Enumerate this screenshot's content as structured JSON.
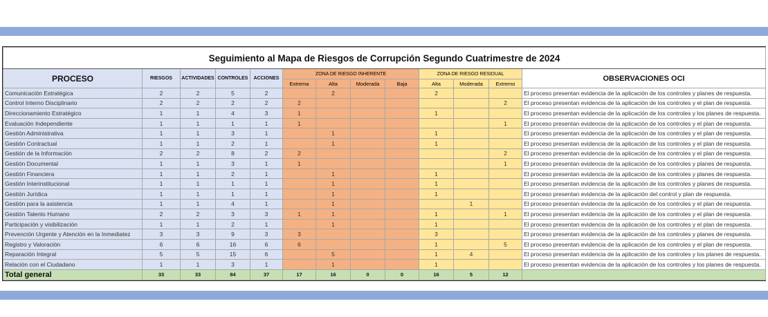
{
  "title": "Seguimiento al Mapa de Riesgos de Corrupción Segundo Cuatrimestre de 2024",
  "headers": {
    "proceso": "PROCESO",
    "riesgos": "RIESGOS",
    "actividades": "ACTIVIDADES",
    "controles": "CONTROLES",
    "acciones": "ACCIONES",
    "zona_inherente": "ZONA DE RIESGO INHERENTE",
    "zona_residual": "ZONA DE RIESGO RESIDUAL",
    "observaciones": "OBSERVACIONES OCI",
    "inh_cols": [
      "Extrema",
      "Alta",
      "Moderada",
      "Baja"
    ],
    "res_cols": [
      "Alta",
      "Moderada",
      "Extremo"
    ]
  },
  "rows": [
    {
      "proceso": "Comunicación Estratégica",
      "riesgos": "2",
      "actividades": "2",
      "controles": "5",
      "acciones": "2",
      "inh": [
        "",
        "2",
        "",
        ""
      ],
      "res": [
        "2",
        "",
        ""
      ],
      "obs": "El proceso presentan evidencia de la aplicación de los controles y planes de respuesta."
    },
    {
      "proceso": "Control Interno Disciplinario",
      "riesgos": "2",
      "actividades": "2",
      "controles": "2",
      "acciones": "2",
      "inh": [
        "2",
        "",
        "",
        ""
      ],
      "res": [
        "",
        "",
        "2"
      ],
      "obs": "El proceso presentan evidencia de la aplicación de los controles y el plan de respuesta."
    },
    {
      "proceso": "Direccionamiento Estratégico",
      "riesgos": "1",
      "actividades": "1",
      "controles": "4",
      "acciones": "3",
      "inh": [
        "1",
        "",
        "",
        ""
      ],
      "res": [
        "1",
        "",
        ""
      ],
      "obs": "El proceso presentan evidencia de la aplicación de los controles y los planes de respuesta."
    },
    {
      "proceso": "Evaluación Independiente",
      "riesgos": "1",
      "actividades": "1",
      "controles": "1",
      "acciones": "1",
      "inh": [
        "1",
        "",
        "",
        ""
      ],
      "res": [
        "",
        "",
        "1"
      ],
      "obs": "El proceso presentan evidencia de la aplicación de los controles y el plan de respuesta."
    },
    {
      "proceso": "Gestión Administrativa",
      "riesgos": "1",
      "actividades": "1",
      "controles": "3",
      "acciones": "1",
      "inh": [
        "",
        "1",
        "",
        ""
      ],
      "res": [
        "1",
        "",
        ""
      ],
      "obs": "El proceso presentan evidencia de la aplicación de los controles y el plan de respuesta."
    },
    {
      "proceso": "Gestión Contractual",
      "riesgos": "1",
      "actividades": "1",
      "controles": "2",
      "acciones": "1",
      "inh": [
        "",
        "1",
        "",
        ""
      ],
      "res": [
        "1",
        "",
        ""
      ],
      "obs": "El proceso presentan evidencia de la aplicación de los controles y el plan de respuesta."
    },
    {
      "proceso": "Gestión de la Información",
      "riesgos": "2",
      "actividades": "2",
      "controles": "8",
      "acciones": "2",
      "inh": [
        "2",
        "",
        "",
        ""
      ],
      "res": [
        "",
        "",
        "2"
      ],
      "obs": "El proceso presentan evidencia de la aplicación de los controles y el plan de respuesta."
    },
    {
      "proceso": "Gestión Documental",
      "riesgos": "1",
      "actividades": "1",
      "controles": "3",
      "acciones": "1",
      "inh": [
        "1",
        "",
        "",
        ""
      ],
      "res": [
        "",
        "",
        "1"
      ],
      "obs": "El proceso presentan evidencia de la aplicación de los controles y planes de respuesta."
    },
    {
      "proceso": "Gestión Financiera",
      "riesgos": "1",
      "actividades": "1",
      "controles": "2",
      "acciones": "1",
      "inh": [
        "",
        "1",
        "",
        ""
      ],
      "res": [
        "1",
        "",
        ""
      ],
      "obs": "El proceso presentan evidencia de la aplicación de los controles y planes de respuesta."
    },
    {
      "proceso": "Gestión Interinstitucional",
      "riesgos": "1",
      "actividades": "1",
      "controles": "1",
      "acciones": "1",
      "inh": [
        "",
        "1",
        "",
        ""
      ],
      "res": [
        "1",
        "",
        ""
      ],
      "obs": "El proceso presentan evidencia de la aplicación de los controles y planes de respuesta."
    },
    {
      "proceso": "Gestión Jurídica",
      "riesgos": "1",
      "actividades": "1",
      "controles": "1",
      "acciones": "1",
      "inh": [
        "",
        "1",
        "",
        ""
      ],
      "res": [
        "1",
        "",
        ""
      ],
      "obs": "El proceso presentan evidencia de la aplicación del control y plan de respuesta."
    },
    {
      "proceso": "Gestión para la asistencia",
      "riesgos": "1",
      "actividades": "1",
      "controles": "4",
      "acciones": "1",
      "inh": [
        "",
        "1",
        "",
        ""
      ],
      "res": [
        "",
        "1",
        ""
      ],
      "obs": "El proceso presentan evidencia de la aplicación de los controles y el plan de respuesta."
    },
    {
      "proceso": "Gestión Talento Humano",
      "riesgos": "2",
      "actividades": "2",
      "controles": "3",
      "acciones": "3",
      "inh": [
        "1",
        "1",
        "",
        ""
      ],
      "res": [
        "1",
        "",
        "1"
      ],
      "obs": "El proceso presentan evidencia de la aplicación de los controles y el plan de respuesta."
    },
    {
      "proceso": "Participación y visibilización",
      "riesgos": "1",
      "actividades": "1",
      "controles": "2",
      "acciones": "1",
      "inh": [
        "",
        "1",
        "",
        ""
      ],
      "res": [
        "1",
        "",
        ""
      ],
      "obs": "El proceso presentan evidencia de la aplicación de los controles y el plan de respuesta."
    },
    {
      "proceso": "Prevención Urgente y Atención en la Inmediatez",
      "riesgos": "3",
      "actividades": "3",
      "controles": "9",
      "acciones": "3",
      "inh": [
        "3",
        "",
        "",
        ""
      ],
      "res": [
        "3",
        "",
        ""
      ],
      "obs": "El proceso presentan evidencia de la aplicación de los controles y planes de respuesta."
    },
    {
      "proceso": "Registro y Valoración",
      "riesgos": "6",
      "actividades": "6",
      "controles": "16",
      "acciones": "6",
      "inh": [
        "6",
        "",
        "",
        ""
      ],
      "res": [
        "1",
        "",
        "5"
      ],
      "obs": "El proceso presentan evidencia de la aplicación de los controles y el plan de respuesta."
    },
    {
      "proceso": "Reparación Integral",
      "riesgos": "5",
      "actividades": "5",
      "controles": "15",
      "acciones": "6",
      "inh": [
        "",
        "5",
        "",
        ""
      ],
      "res": [
        "1",
        "4",
        ""
      ],
      "obs": "El proceso presentan evidencia de la aplicación de los controles y los planes de respuesta."
    },
    {
      "proceso": "Relación con el Ciudadano",
      "riesgos": "1",
      "actividades": "1",
      "controles": "3",
      "acciones": "1",
      "inh": [
        "",
        "1",
        "",
        ""
      ],
      "res": [
        "1",
        "",
        ""
      ],
      "obs": "El proceso presentan evidencia de la aplicación de los controles y los planes de respuesta."
    }
  ],
  "total": {
    "label": "Total general",
    "riesgos": "33",
    "actividades": "33",
    "controles": "84",
    "acciones": "37",
    "inh": [
      "17",
      "16",
      "0",
      "0"
    ],
    "res": [
      "16",
      "5",
      "12"
    ]
  },
  "colors": {
    "band": "#8eaadb",
    "proceso_fill": "#d9e1f2",
    "inherente_fill": "#f4b183",
    "residual_fill": "#ffe699",
    "total_fill": "#c6e0b4"
  }
}
